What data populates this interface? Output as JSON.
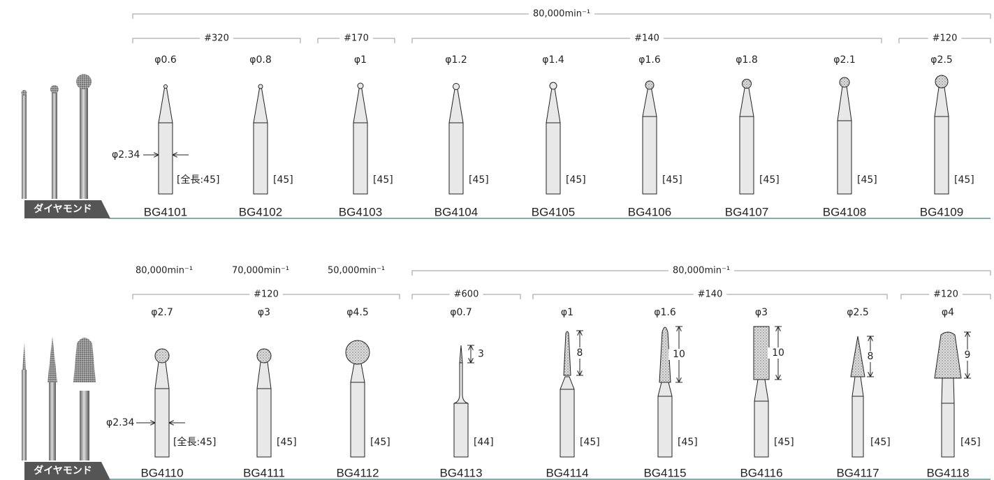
{
  "sections": [
    {
      "speed_brackets": [
        "80,000min⁻¹"
      ],
      "grit_brackets": [
        "#320",
        "#170",
        "#140",
        "#120"
      ],
      "shank_diameter": "φ2.34",
      "material": "ダイヤモンド",
      "items": [
        {
          "diameter": "φ0.6",
          "length": "[全長:45]",
          "code": "BG4101"
        },
        {
          "diameter": "φ0.8",
          "length": "[45]",
          "code": "BG4102"
        },
        {
          "diameter": "φ1",
          "length": "[45]",
          "code": "BG4103"
        },
        {
          "diameter": "φ1.2",
          "length": "[45]",
          "code": "BG4104"
        },
        {
          "diameter": "φ1.4",
          "length": "[45]",
          "code": "BG4105"
        },
        {
          "diameter": "φ1.6",
          "length": "[45]",
          "code": "BG4106"
        },
        {
          "diameter": "φ1.8",
          "length": "[45]",
          "code": "BG4107"
        },
        {
          "diameter": "φ2.1",
          "length": "[45]",
          "code": "BG4108"
        },
        {
          "diameter": "φ2.5",
          "length": "[45]",
          "code": "BG4109"
        }
      ]
    },
    {
      "speed_labels": [
        "80,000min⁻¹",
        "70,000min⁻¹",
        "50,000min⁻¹"
      ],
      "speed_brackets": [
        "80,000min⁻¹"
      ],
      "grit_brackets": [
        "#120",
        "#600",
        "#140",
        "#120"
      ],
      "shank_diameter": "φ2.34",
      "material": "ダイヤモンド",
      "items": [
        {
          "diameter": "φ2.7",
          "length": "[全長:45]",
          "code": "BG4110"
        },
        {
          "diameter": "φ3",
          "length": "[45]",
          "code": "BG4111"
        },
        {
          "diameter": "φ4.5",
          "length": "[45]",
          "code": "BG4112"
        },
        {
          "diameter": "φ0.7",
          "head_length": "3",
          "length": "[44]",
          "code": "BG4113"
        },
        {
          "diameter": "φ1",
          "head_length": "8",
          "length": "[45]",
          "code": "BG4114"
        },
        {
          "diameter": "φ1.6",
          "head_length": "10",
          "length": "[45]",
          "code": "BG4115"
        },
        {
          "diameter": "φ3",
          "head_length": "10",
          "length": "[45]",
          "code": "BG4116"
        },
        {
          "diameter": "φ2.5",
          "head_length": "8",
          "length": "[45]",
          "code": "BG4117"
        },
        {
          "diameter": "φ4",
          "head_length": "9",
          "length": "[45]",
          "code": "BG4118"
        }
      ]
    }
  ]
}
